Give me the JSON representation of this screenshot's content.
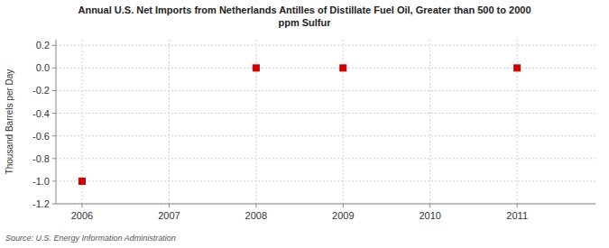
{
  "chart_data": {
    "type": "scatter",
    "title": "Annual U.S. Net Imports from Netherlands Antilles of Distillate Fuel Oil, Greater than 500 to 2000\nppm Sulfur",
    "y_label": "Thousand Barrels per Day",
    "source": "Source: U.S. Energy Information Administration",
    "x": [
      2006,
      2008,
      2009,
      2011
    ],
    "values": [
      -1.0,
      0.0,
      0.0,
      0.0
    ],
    "color": "#cc0000",
    "marker": "square",
    "xlim": [
      2005.7,
      2011.9
    ],
    "ylim": [
      -1.2,
      0.25
    ],
    "xticks": [
      2006,
      2007,
      2008,
      2009,
      2010,
      2011
    ],
    "yticks": [
      -1.2,
      {
        "value": -1.0,
        "label": "-1.0"
      },
      -0.8,
      -0.6,
      -0.4,
      -0.2,
      {
        "value": 0.0,
        "label": "0.0"
      },
      0.2
    ],
    "grid": true
  }
}
